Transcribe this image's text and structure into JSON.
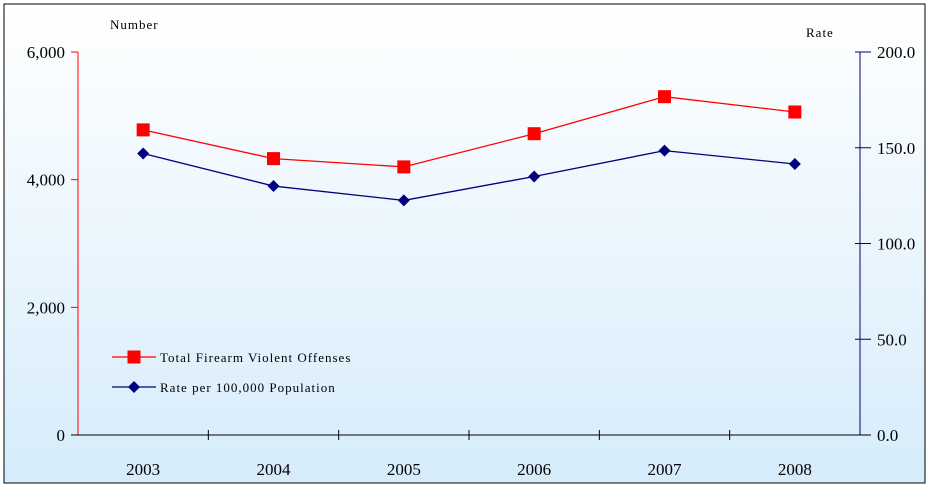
{
  "chart_data": {
    "type": "line",
    "categories": [
      "2003",
      "2004",
      "2005",
      "2006",
      "2007",
      "2008"
    ],
    "left_axis": {
      "title": "Number",
      "ylim": [
        0,
        6000
      ],
      "ticks": [
        0,
        2000,
        4000,
        6000
      ],
      "tick_labels": [
        "0",
        "2,000",
        "4,000",
        "6,000"
      ],
      "color": "#ff0000"
    },
    "right_axis": {
      "title": "Rate",
      "ylim": [
        0,
        200
      ],
      "ticks": [
        0,
        50,
        100,
        150,
        200
      ],
      "tick_labels": [
        "0.0",
        "50.0",
        "100.0",
        "150.0",
        "200.0"
      ],
      "color": "#000080"
    },
    "series": [
      {
        "name": "Total Firearm Violent Offenses",
        "axis": "left",
        "values": [
          4780,
          4330,
          4200,
          4720,
          5300,
          5060
        ],
        "color": "#ff0000",
        "marker": "square"
      },
      {
        "name": "Rate per 100,000 Population",
        "axis": "right",
        "values": [
          147,
          130,
          122.5,
          135,
          148.5,
          141.5
        ],
        "color": "#000080",
        "marker": "diamond"
      }
    ],
    "grid": false,
    "legend": "bottom-left",
    "background_gradient": [
      "#ffffff",
      "#d6ecfb"
    ]
  }
}
